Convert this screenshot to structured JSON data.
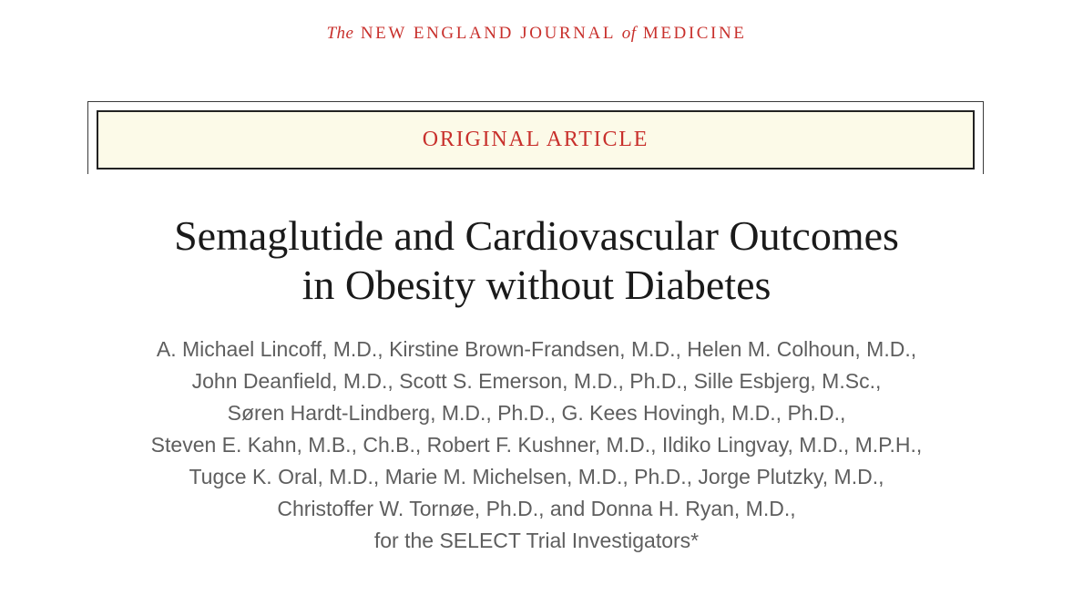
{
  "journal": {
    "prefix": "The",
    "name_part1": "New England Journal",
    "connector": "of",
    "name_part2": "Medicine"
  },
  "article_type": "Original Article",
  "title_lines": [
    "Semaglutide and Cardiovascular Outcomes",
    "in Obesity without Diabetes"
  ],
  "author_lines": [
    "A. Michael Lincoff, M.D., Kirstine Brown-Frandsen, M.D., Helen M. Colhoun, M.D.,",
    "John Deanfield, M.D., Scott S. Emerson, M.D., Ph.D., Sille Esbjerg, M.Sc.,",
    "Søren Hardt-Lindberg, M.D., Ph.D., G. Kees Hovingh, M.D., Ph.D.,",
    "Steven E. Kahn, M.B., Ch.B., Robert F. Kushner, M.D., Ildiko Lingvay, M.D., M.P.H.,",
    "Tugce K. Oral, M.D., Marie M. Michelsen, M.D., Ph.D., Jorge Plutzky, M.D.,",
    "Christoffer W. Tornøe, Ph.D., and Donna H. Ryan, M.D.,",
    "for the SELECT Trial Investigators*"
  ],
  "colors": {
    "accent_red": "#c8302c",
    "banner_background": "#fcfae8",
    "title_text": "#1a1a1a",
    "author_text": "#5e5e5e"
  }
}
